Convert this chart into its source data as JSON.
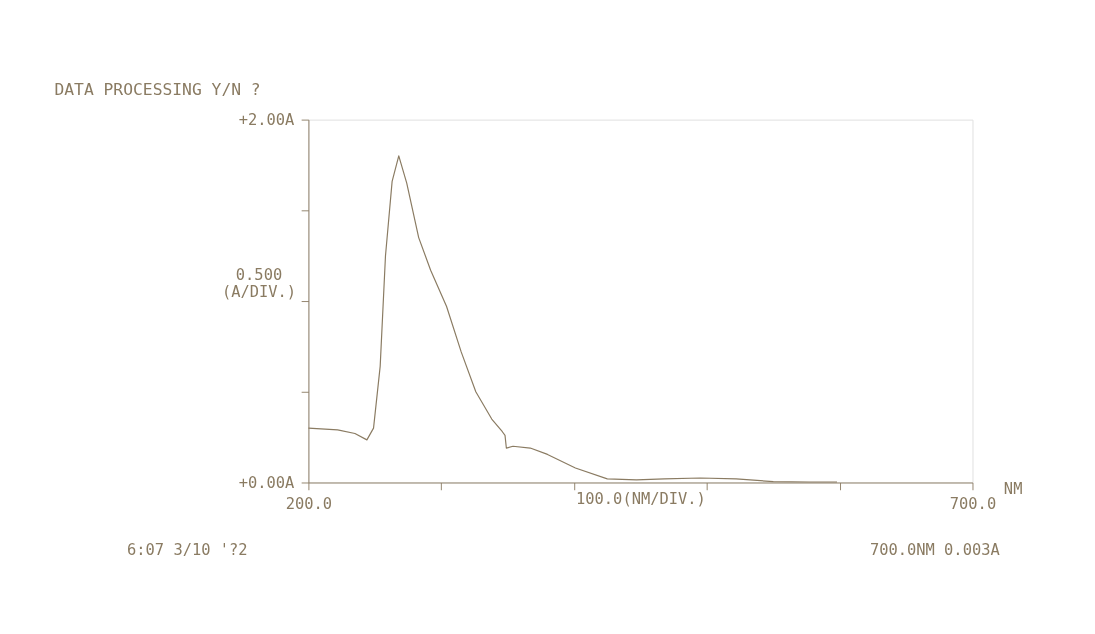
{
  "chart_data": {
    "type": "line",
    "title": "DATA PROCESSING Y/N ?",
    "xlabel": "100.0(NM/DIV.)",
    "ylabel": "0.500 (A/DIV.)",
    "x": [
      200,
      222,
      235,
      244,
      249,
      254,
      258,
      263,
      268,
      274,
      283,
      292,
      304,
      315,
      326,
      338,
      346,
      348,
      349,
      354,
      367,
      380,
      401,
      425,
      447,
      468,
      495,
      522,
      550,
      577,
      598
    ],
    "series": [
      {
        "color": "#8a7b62",
        "values": [
          0.3,
          0.29,
          0.27,
          0.235,
          0.3,
          0.64,
          1.25,
          1.66,
          1.8,
          1.65,
          1.35,
          1.17,
          0.97,
          0.72,
          0.5,
          0.35,
          0.28,
          0.26,
          0.19,
          0.2,
          0.19,
          0.155,
          0.08,
          0.02,
          0.015,
          0.02,
          0.025,
          0.02,
          0.005,
          0.003,
          0.003
        ]
      }
    ],
    "xlim": [
      200,
      700
    ],
    "ylim": [
      0,
      2
    ],
    "xticks": [
      {
        "value": 200,
        "label": "200.0"
      },
      {
        "value": 300,
        "label": null
      },
      {
        "value": 400,
        "label": null
      },
      {
        "value": 500,
        "label": null
      },
      {
        "value": 600,
        "label": null
      },
      {
        "value": 700,
        "label": "700.0"
      }
    ],
    "yticks": [
      {
        "value": 0,
        "label": "+0.00A"
      },
      {
        "value": 0.5,
        "label": null
      },
      {
        "value": 1,
        "label": null
      },
      {
        "value": 1.5,
        "label": null
      },
      {
        "value": 2,
        "label": "+2.00A"
      }
    ],
    "grid": false,
    "marker": "none",
    "line_style": "solid",
    "annotations": [
      "NM",
      "6:07   3/10  '?2",
      "700.0NM    0.003A"
    ]
  }
}
